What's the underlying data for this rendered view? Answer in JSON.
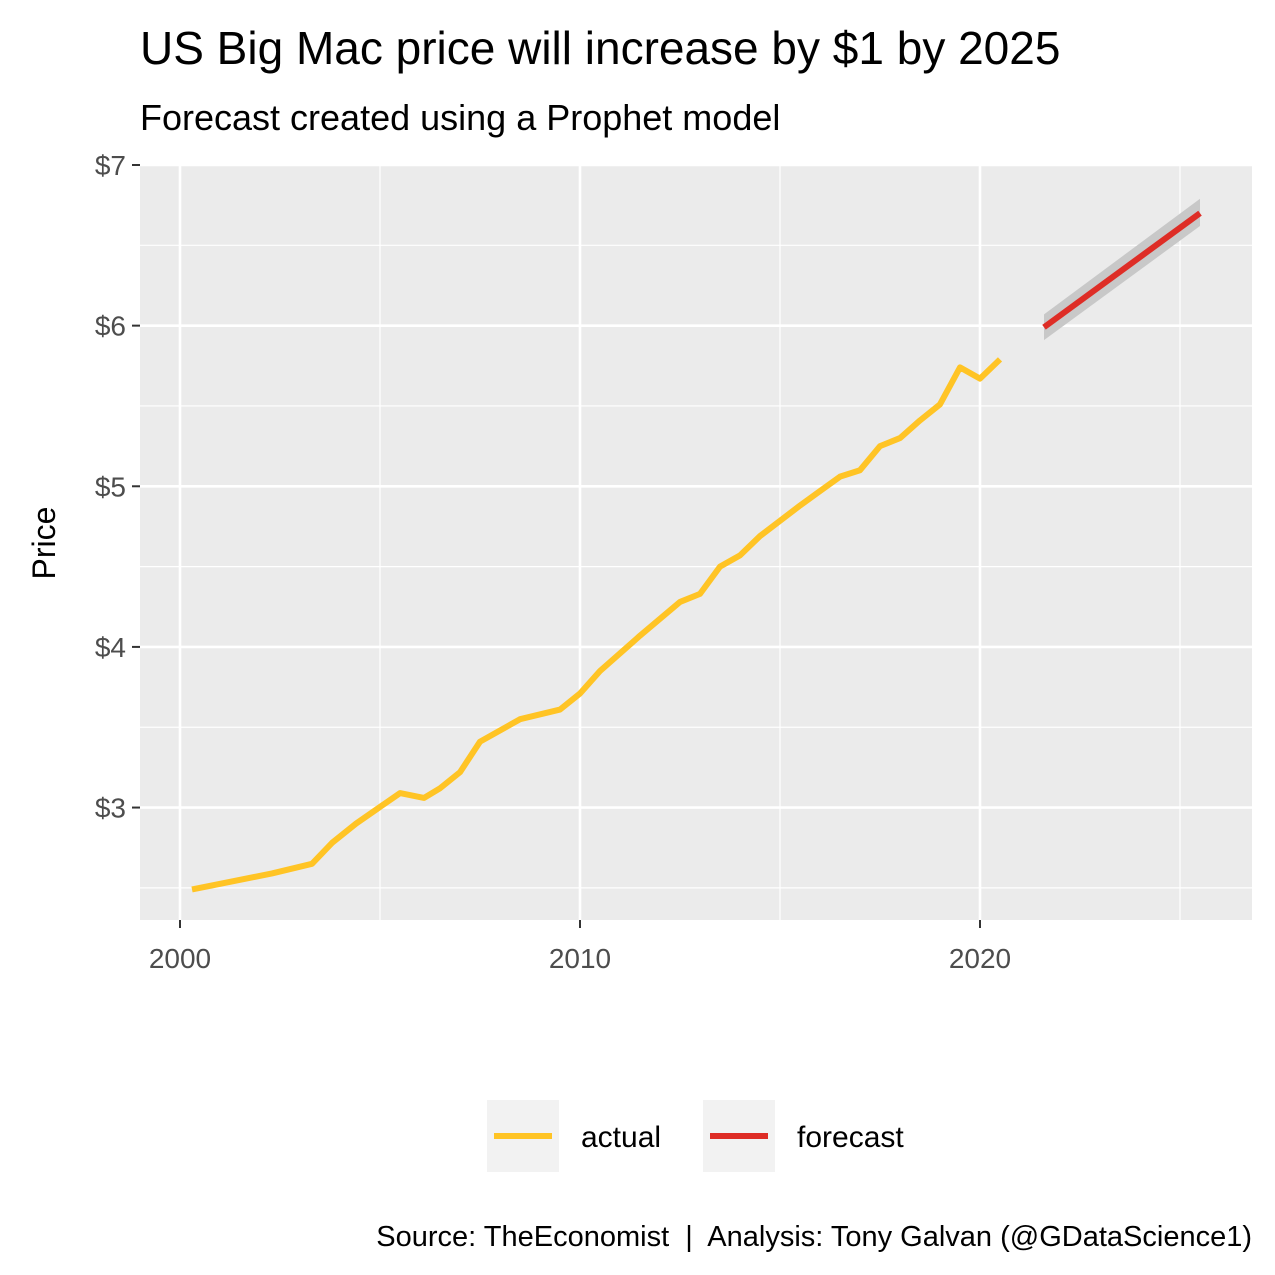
{
  "chart_data": {
    "type": "line",
    "title": "US Big Mac price will increase by $1 by 2025",
    "subtitle": "Forecast created using a Prophet model",
    "xlabel": "",
    "ylabel": "Price",
    "caption": "Source: TheEconomist  |  Analysis: Tony Galvan (@GDataScience1)",
    "xlim": [
      1999.0,
      2026.8
    ],
    "ylim": [
      2.3,
      7.0
    ],
    "x_ticks": [
      2000,
      2010,
      2020
    ],
    "x_tick_labels": [
      "2000",
      "2010",
      "2020"
    ],
    "y_ticks": [
      3,
      4,
      5,
      6,
      7
    ],
    "y_tick_labels": [
      "$3",
      "$4",
      "$5",
      "$6",
      "$7"
    ],
    "grid": true,
    "legend_position": "bottom",
    "series": [
      {
        "name": "actual",
        "color": "#ffc425",
        "points": [
          [
            2000.3,
            2.49
          ],
          [
            2001.3,
            2.54
          ],
          [
            2002.3,
            2.59
          ],
          [
            2003.3,
            2.65
          ],
          [
            2003.8,
            2.78
          ],
          [
            2004.4,
            2.9
          ],
          [
            2005.5,
            3.09
          ],
          [
            2006.1,
            3.06
          ],
          [
            2006.5,
            3.12
          ],
          [
            2007.0,
            3.22
          ],
          [
            2007.5,
            3.41
          ],
          [
            2008.5,
            3.55
          ],
          [
            2009.5,
            3.61
          ],
          [
            2010.0,
            3.71
          ],
          [
            2010.5,
            3.85
          ],
          [
            2011.5,
            4.07
          ],
          [
            2012.5,
            4.28
          ],
          [
            2013.0,
            4.33
          ],
          [
            2013.5,
            4.5
          ],
          [
            2014.0,
            4.57
          ],
          [
            2014.5,
            4.69
          ],
          [
            2015.5,
            4.88
          ],
          [
            2016.0,
            4.97
          ],
          [
            2016.5,
            5.06
          ],
          [
            2017.0,
            5.1
          ],
          [
            2017.5,
            5.25
          ],
          [
            2018.0,
            5.3
          ],
          [
            2018.5,
            5.41
          ],
          [
            2019.0,
            5.51
          ],
          [
            2019.5,
            5.74
          ],
          [
            2020.0,
            5.67
          ],
          [
            2020.5,
            5.79
          ]
        ]
      },
      {
        "name": "forecast",
        "color": "#de2d26",
        "points": [
          [
            2021.6,
            5.99
          ],
          [
            2025.5,
            6.7
          ]
        ],
        "band_lower": [
          [
            2021.6,
            5.91
          ],
          [
            2025.5,
            6.62
          ]
        ],
        "band_upper": [
          [
            2021.6,
            6.07
          ],
          [
            2025.5,
            6.79
          ]
        ],
        "band_color": "#c8c8c8"
      }
    ]
  }
}
